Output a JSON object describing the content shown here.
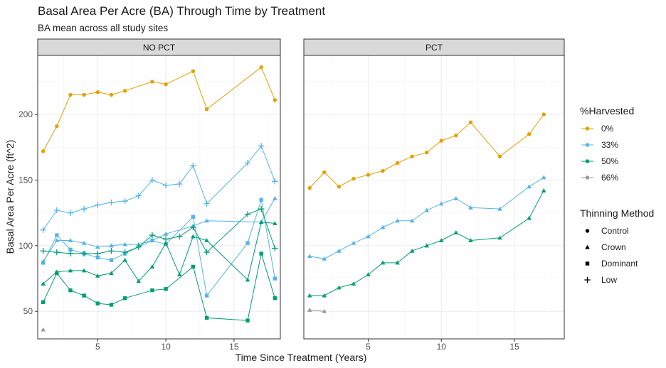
{
  "chart_data": {
    "type": "line",
    "title": "Basal Area Per Acre (BA) Through Time by Treatment",
    "subtitle": "BA mean across all study sites",
    "xlabel": "Time Since Treatment (Years)",
    "ylabel": "Basal Area Per Acre (ft^2)",
    "xlim": [
      0.6,
      18.4
    ],
    "ylim": [
      29,
      245
    ],
    "x_ticks": [
      5,
      10,
      15
    ],
    "y_ticks": [
      50,
      100,
      150,
      200
    ],
    "grid": true,
    "legend_position": "right",
    "legend": {
      "color_title": "%Harvested",
      "color_entries": [
        {
          "label": "0%",
          "color": "#E69F00"
        },
        {
          "label": "33%",
          "color": "#56B4E9"
        },
        {
          "label": "50%",
          "color": "#009E73"
        },
        {
          "label": "66%",
          "color": "#999999"
        }
      ],
      "shape_title": "Thinning Method",
      "shape_entries": [
        {
          "label": "Control",
          "shape": "circle"
        },
        {
          "label": "Crown",
          "shape": "triangle"
        },
        {
          "label": "Dominant",
          "shape": "square"
        },
        {
          "label": "Low",
          "shape": "plus"
        }
      ]
    },
    "panels": [
      {
        "label": "NO PCT",
        "series": [
          {
            "harvest": "0%",
            "method": "Control",
            "color": "#E69F00",
            "shape": "circle",
            "x": [
              1,
              2,
              3,
              4,
              5,
              6,
              7,
              9,
              10,
              12,
              13,
              17,
              18
            ],
            "y": [
              172,
              191,
              215,
              215,
              217,
              215,
              218,
              225,
              223,
              233,
              204,
              236,
              211
            ]
          },
          {
            "harvest": "33%",
            "method": "Low",
            "color": "#56B4E9",
            "shape": "plus",
            "x": [
              1,
              2,
              3,
              4,
              5,
              6,
              7,
              8,
              9,
              10,
              11,
              12,
              13,
              16,
              17,
              18
            ],
            "y": [
              112,
              127,
              125,
              128,
              131,
              133,
              134,
              138,
              150,
              146,
              147,
              161,
              132,
              163,
              176,
              149
            ]
          },
          {
            "harvest": "33%",
            "method": "Crown",
            "color": "#56B4E9",
            "shape": "triangle",
            "x": [
              1,
              2,
              3,
              4,
              5,
              6,
              7,
              8,
              9,
              10,
              12,
              13,
              17,
              18
            ],
            "y": [
              88,
              104,
              104,
              102,
              99,
              100,
              101,
              101,
              104,
              109,
              115,
              119,
              118,
              136
            ]
          },
          {
            "harvest": "33%",
            "method": "Dominant",
            "color": "#56B4E9",
            "shape": "square",
            "x": [
              1,
              2,
              3,
              4,
              5,
              6,
              7,
              9,
              10,
              12,
              13,
              16,
              17,
              18
            ],
            "y": [
              87,
              108,
              97,
              94,
              91,
              89,
              94,
              104,
              101,
              122,
              62,
              102,
              135,
              75
            ]
          },
          {
            "harvest": "50%",
            "method": "Crown",
            "color": "#009E73",
            "shape": "triangle",
            "x": [
              1,
              2,
              3,
              4,
              5,
              6,
              7,
              8,
              9,
              10,
              11,
              12,
              13,
              16,
              17,
              18
            ],
            "y": [
              71,
              80,
              81,
              81,
              77,
              79,
              89,
              73,
              84,
              102,
              78,
              107,
              104,
              74,
              118,
              117
            ]
          },
          {
            "harvest": "50%",
            "method": "Dominant",
            "color": "#009E73",
            "shape": "square",
            "x": [
              1,
              2,
              3,
              4,
              5,
              6,
              7,
              9,
              10,
              12,
              13,
              16,
              17,
              18
            ],
            "y": [
              57,
              79,
              66,
              62,
              56,
              55,
              60,
              66,
              67,
              84,
              45,
              43,
              94,
              60
            ]
          },
          {
            "harvest": "50%",
            "method": "Low",
            "color": "#009E73",
            "shape": "plus",
            "x": [
              1,
              2,
              3,
              4,
              5,
              6,
              7,
              8,
              9,
              10,
              11,
              12,
              13,
              16,
              17,
              18
            ],
            "y": [
              96,
              95,
              94,
              94,
              94,
              96,
              95,
              99,
              108,
              105,
              107,
              114,
              95,
              124,
              128,
              98
            ]
          },
          {
            "harvest": "66%",
            "method": "Crown",
            "color": "#999999",
            "shape": "triangle",
            "x": [
              1
            ],
            "y": [
              36
            ]
          }
        ]
      },
      {
        "label": "PCT",
        "series": [
          {
            "harvest": "0%",
            "method": "Control",
            "color": "#E69F00",
            "shape": "circle",
            "x": [
              1,
              2,
              3,
              4,
              5,
              6,
              7,
              8,
              9,
              10,
              11,
              12,
              14,
              16,
              17
            ],
            "y": [
              144,
              156,
              145,
              151,
              154,
              157,
              163,
              168,
              171,
              180,
              184,
              194,
              168,
              185,
              200
            ]
          },
          {
            "harvest": "33%",
            "method": "Crown",
            "color": "#56B4E9",
            "shape": "triangle",
            "x": [
              1,
              2,
              3,
              4,
              5,
              6,
              7,
              8,
              9,
              10,
              11,
              12,
              14,
              16,
              17
            ],
            "y": [
              92,
              90,
              96,
              102,
              107,
              114,
              119,
              119,
              127,
              132,
              136,
              129,
              128,
              145,
              152
            ]
          },
          {
            "harvest": "50%",
            "method": "Crown",
            "color": "#009E73",
            "shape": "triangle",
            "x": [
              1,
              2,
              3,
              4,
              5,
              6,
              7,
              8,
              9,
              10,
              11,
              12,
              14,
              16,
              17
            ],
            "y": [
              62,
              62,
              68,
              71,
              78,
              87,
              87,
              96,
              100,
              104,
              110,
              104,
              106,
              121,
              142
            ]
          },
          {
            "harvest": "66%",
            "method": "Crown",
            "color": "#999999",
            "shape": "triangle",
            "x": [
              1,
              2
            ],
            "y": [
              51,
              50
            ]
          }
        ]
      }
    ]
  }
}
